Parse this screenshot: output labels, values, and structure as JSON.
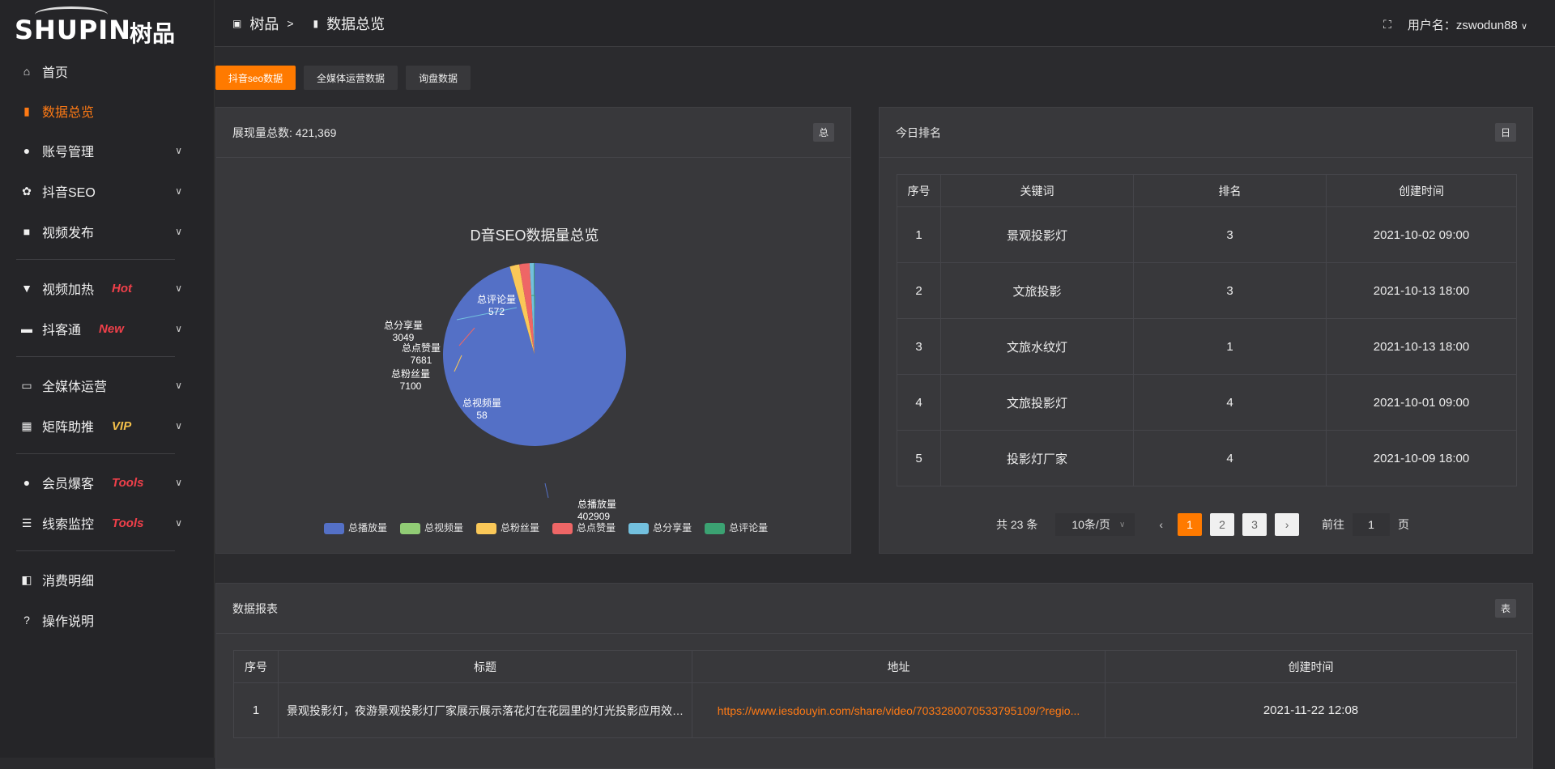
{
  "logo": {
    "en": "SHUPIN",
    "cn": "树品"
  },
  "header": {
    "crumb_root": "树品",
    "crumb_sep": ">",
    "crumb_current": "数据总览",
    "user_label": "用户名：zswodun88"
  },
  "sidebar": {
    "items": [
      {
        "label": "首页",
        "icon": "home-icon"
      },
      {
        "label": "数据总览",
        "icon": "bar-chart-icon",
        "active": true
      },
      {
        "label": "账号管理",
        "icon": "user-icon"
      },
      {
        "label": "抖音SEO",
        "icon": "gear-icon"
      },
      {
        "label": "视频发布",
        "icon": "camera-icon"
      },
      {
        "label": "视频加热",
        "icon": "brush-icon",
        "tag": "Hot"
      },
      {
        "label": "抖客通",
        "icon": "chat-icon",
        "tag": "New"
      },
      {
        "label": "全媒体运营",
        "icon": "monitor-icon"
      },
      {
        "label": "矩阵助推",
        "icon": "grid-icon",
        "tag": "VIP"
      },
      {
        "label": "会员爆客",
        "icon": "user-icon",
        "tag": "Tools"
      },
      {
        "label": "线索监控",
        "icon": "sliders-icon",
        "tag": "Tools"
      },
      {
        "label": "消费明细",
        "icon": "wallet-icon"
      },
      {
        "label": "操作说明",
        "icon": "help-icon"
      }
    ]
  },
  "tabs": [
    "抖音seo数据",
    "全媒体运营数据",
    "询盘数据"
  ],
  "colors": {
    "accent": "#ff7a00",
    "hot": "#f0404a",
    "vip": "#f4c04a"
  },
  "left_card": {
    "title": "展现量总数: 421,369",
    "tag": "总"
  },
  "chart_data": {
    "type": "pie",
    "title": "D音SEO数据量总览",
    "legend_position": "bottom",
    "slices": [
      {
        "name": "总播放量",
        "value": 402909,
        "color": "#5470c6"
      },
      {
        "name": "总视频量",
        "value": 58,
        "color": "#91cc75"
      },
      {
        "name": "总粉丝量",
        "value": 7100,
        "color": "#fac858"
      },
      {
        "name": "总点赞量",
        "value": 7681,
        "color": "#ee6666"
      },
      {
        "name": "总分享量",
        "value": 3049,
        "color": "#73c0de"
      },
      {
        "name": "总评论量",
        "value": 572,
        "color": "#3ba272"
      }
    ]
  },
  "right_card": {
    "title": "今日排名",
    "tag": "日",
    "columns": [
      "序号",
      "关键词",
      "排名",
      "创建时间"
    ],
    "rows": [
      [
        "1",
        "景观投影灯",
        "3",
        "2021-10-02 09:00"
      ],
      [
        "2",
        "文旅投影",
        "3",
        "2021-10-13 18:00"
      ],
      [
        "3",
        "文旅水纹灯",
        "1",
        "2021-10-13 18:00"
      ],
      [
        "4",
        "文旅投影灯",
        "4",
        "2021-10-01 09:00"
      ],
      [
        "5",
        "投影灯厂家",
        "4",
        "2021-10-09 18:00"
      ]
    ],
    "pagination": {
      "total": "共 23 条",
      "page_size": "10条/页",
      "pages": [
        "1",
        "2",
        "3"
      ],
      "current": 1,
      "goto_label": "前往",
      "goto_value": "1",
      "page_unit": "页"
    }
  },
  "bottom_card": {
    "title": "数据报表",
    "tag": "表",
    "columns": [
      "序号",
      "标题",
      "地址",
      "创建时间"
    ],
    "rows": [
      [
        "1",
        "景观投影灯，夜游景观投影灯厂家展示展示落花灯在花园里的灯光投影应用效果 #",
        "https://www.iesdouyin.com/share/video/7033280070533795109/?regio...",
        "2021-11-22 12:08"
      ]
    ]
  }
}
